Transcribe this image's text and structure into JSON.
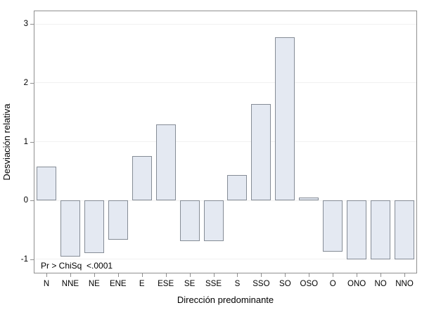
{
  "figure": {
    "background": "#ffffff",
    "frame_border_color": "#8f8f8f",
    "gridline_color": "#f1f1f1",
    "bar_fill_color": "#e4e9f2",
    "bar_border_color": "#858c96",
    "tick_color": "#8f8f8f",
    "text_color": "#000000",
    "annotation": "Pr > ChiSq  <.0001"
  },
  "chart_data": {
    "type": "bar",
    "title": "",
    "xlabel": "Dirección predominante",
    "ylabel": "Desviación relativa",
    "categories": [
      "N",
      "NNE",
      "NE",
      "ENE",
      "E",
      "ESE",
      "SE",
      "SSE",
      "S",
      "SSO",
      "SO",
      "OSO",
      "O",
      "ONO",
      "NO",
      "NNO"
    ],
    "values": [
      0.58,
      -0.95,
      -0.9,
      -0.67,
      0.76,
      1.3,
      -0.69,
      -0.69,
      0.43,
      1.64,
      2.78,
      0.05,
      -0.87,
      -1.0,
      -1.0,
      -1.0
    ],
    "yticks": [
      -1,
      0,
      1,
      2,
      3
    ],
    "ylim": [
      -1.23,
      3.22
    ],
    "grid": true,
    "legend": "none",
    "annotation": "Pr > ChiSq  <.0001"
  }
}
